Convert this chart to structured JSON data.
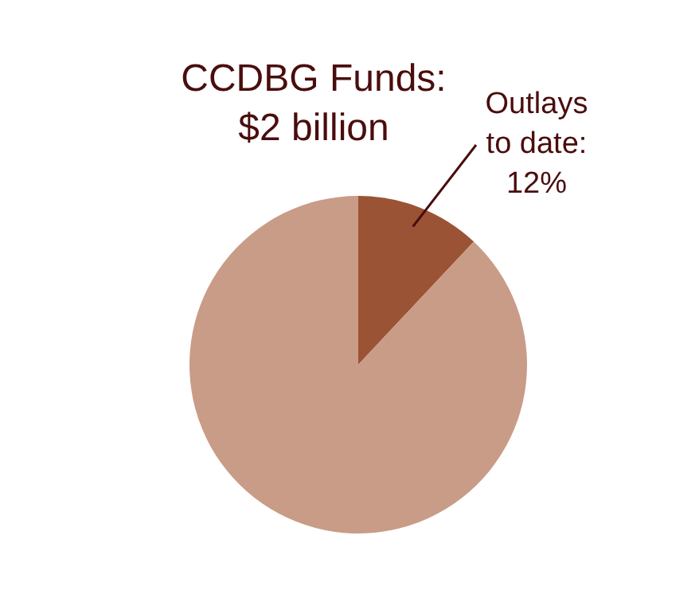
{
  "chart_data": {
    "type": "pie",
    "title": "CCDBG Funds:\n$2 billion",
    "categories": [
      null,
      null
    ],
    "annotations": [
      "Outlays to date:"
    ],
    "values": [
      12,
      88
    ],
    "value_labels": [
      "12%",
      null
    ],
    "colors": [
      "#9b5336",
      "#c99c87"
    ]
  }
}
